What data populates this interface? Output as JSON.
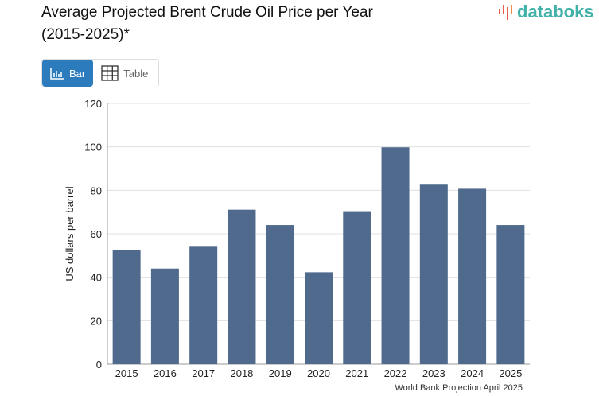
{
  "header": {
    "title": "Average Projected Brent Crude Oil Price per Year (2015-2025)*",
    "logo": "databoks"
  },
  "toggle": {
    "bar_label": "Bar",
    "table_label": "Table",
    "active": "Bar"
  },
  "colors": {
    "bar": "#4f6a8c",
    "active_button": "#2b7bbd",
    "logo": "#3fb1a8"
  },
  "chart_data": {
    "type": "bar",
    "categories": [
      "2015",
      "2016",
      "2017",
      "2018",
      "2019",
      "2020",
      "2021",
      "2022",
      "2023",
      "2024",
      "2025"
    ],
    "values": [
      52.4,
      44.0,
      54.4,
      71.1,
      64.0,
      42.3,
      70.4,
      99.8,
      82.6,
      80.7,
      64.0
    ],
    "ylabel": "US dollars per barrel",
    "xlabel": "",
    "ylim": [
      0,
      120
    ],
    "yticks": [
      0,
      20,
      40,
      60,
      80,
      100,
      120
    ],
    "grid": true,
    "source": "World Bank Projection April 2025"
  }
}
